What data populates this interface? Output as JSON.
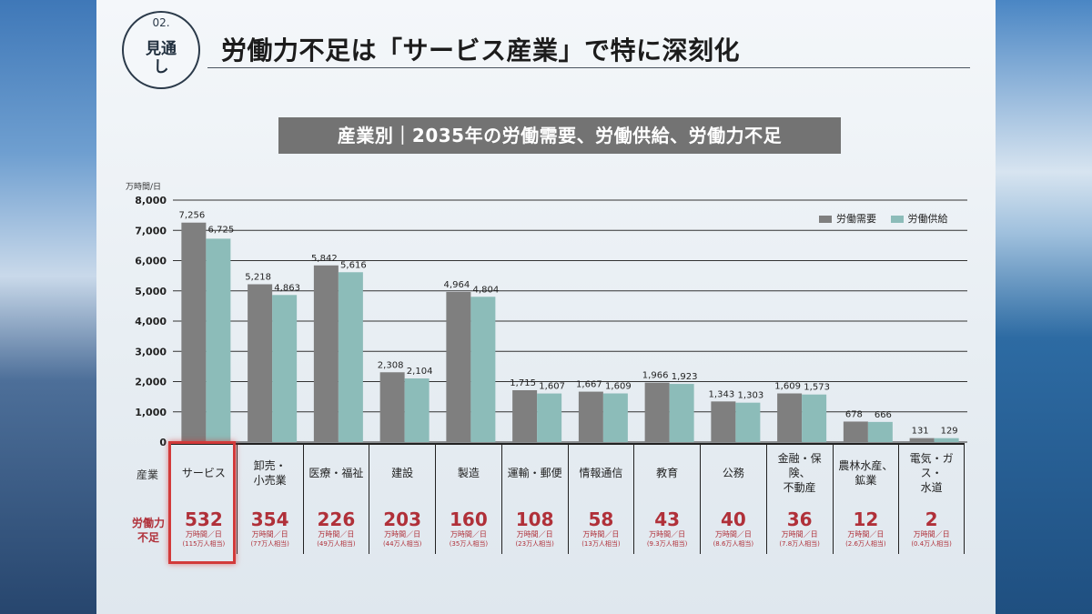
{
  "slide": {
    "badge_number": "02.",
    "badge_label": "見通\nし",
    "title": "労働力不足は「サービス産業」で特に深刻化",
    "chart_title": "産業別｜2035年の労働需要、労働供給、労働力不足",
    "row_header_industry": "産業",
    "row_header_shortage": "労働力\n不足"
  },
  "colors": {
    "demand": "#7f7f7f",
    "supply": "#8cbcb9",
    "highlight": "#d23a3a",
    "shortage_text": "#b03039"
  },
  "chart_data": {
    "type": "bar",
    "title": "産業別｜2035年の労働需要、労働供給、労働力不足",
    "ylabel": "万時間/日",
    "ylim": [
      0,
      8000
    ],
    "yticks": [
      0,
      1000,
      2000,
      3000,
      4000,
      5000,
      6000,
      7000,
      8000
    ],
    "ytick_labels": [
      "0",
      "1,000",
      "2,000",
      "3,000",
      "4,000",
      "5,000",
      "6,000",
      "7,000",
      "8,000"
    ],
    "grid": true,
    "legend_position": "top-right",
    "categories": [
      "サービス",
      "卸売・\n小売業",
      "医療・福祉",
      "建設",
      "製造",
      "運輸・郵便",
      "情報通信",
      "教育",
      "公務",
      "金融・保険、\n不動産",
      "農林水産、\n鉱業",
      "電気・ガス・\n水道"
    ],
    "series": [
      {
        "name": "労働需要",
        "values": [
          7256,
          5218,
          5842,
          2308,
          4964,
          1715,
          1667,
          1966,
          1343,
          1609,
          678,
          131
        ],
        "labels": [
          "7,256",
          "5,218",
          "5,842",
          "2,308",
          "4,964",
          "1,715",
          "1,667",
          "1,966",
          "1,343",
          "1,609",
          "678",
          "131"
        ]
      },
      {
        "name": "労働供給",
        "values": [
          6725,
          4863,
          5616,
          2104,
          4804,
          1607,
          1609,
          1923,
          1303,
          1573,
          666,
          129
        ],
        "labels": [
          "6,725",
          "4,863",
          "5,616",
          "2,104",
          "4,804",
          "1,607",
          "1,609",
          "1,923",
          "1,303",
          "1,573",
          "666",
          "129"
        ]
      }
    ],
    "shortage": {
      "values": [
        "532",
        "354",
        "226",
        "203",
        "160",
        "108",
        "58",
        "43",
        "40",
        "36",
        "12",
        "2"
      ],
      "unit": "万時間／日",
      "people": [
        "(115万人相当)",
        "(77万人相当)",
        "(49万人相当)",
        "(44万人相当)",
        "(35万人相当)",
        "(23万人相当)",
        "(13万人相当)",
        "(9.3万人相当)",
        "(8.6万人相当)",
        "(7.8万人相当)",
        "(2.6万人相当)",
        "(0.4万人相当)"
      ]
    }
  }
}
